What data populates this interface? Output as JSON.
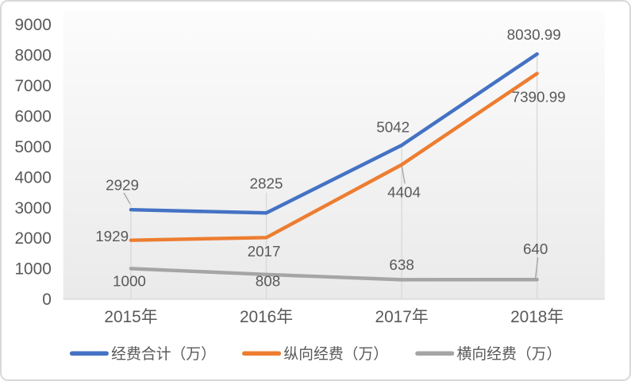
{
  "chart_data": {
    "type": "line",
    "title": "",
    "categories": [
      "2015年",
      "2016年",
      "2017年",
      "2018年"
    ],
    "series": [
      {
        "name": "经费合计（万）",
        "color": "#4472C4",
        "values": [
          2929,
          2825,
          5042,
          8030.99
        ],
        "labels": [
          "2929",
          "2825",
          "5042",
          "8030.99"
        ]
      },
      {
        "name": "纵向经费（万）",
        "color": "#ED7D31",
        "values": [
          1929,
          2017,
          4404,
          7390.99
        ],
        "labels": [
          "1929",
          "2017",
          "4404",
          "7390.99"
        ]
      },
      {
        "name": "横向经费（万）",
        "color": "#A5A5A5",
        "values": [
          1000,
          808,
          638,
          640
        ],
        "labels": [
          "1000",
          "808",
          "638",
          "640"
        ]
      }
    ],
    "y_axis": {
      "min": 0,
      "max": 9000,
      "step": 1000,
      "tick_labels": [
        "0",
        "1000",
        "2000",
        "3000",
        "4000",
        "5000",
        "6000",
        "7000",
        "8000",
        "9000"
      ]
    },
    "xlabel": "",
    "ylabel": "",
    "gridlines": false,
    "drop_lines": true,
    "legend": {
      "position": "bottom",
      "entries": [
        "经费合计（万）",
        "纵向经费（万）",
        "横向经费（万）"
      ]
    }
  },
  "colors": {
    "text": "#595959",
    "axis_line": "#D9D9D9",
    "drop_line": "#D9D9D9",
    "leader_line": "#A6A6A6",
    "plot_bg_top": "#FCFCFC",
    "plot_bg_bottom": "#EAEAEA",
    "card_border": "#D9D9D9",
    "card_bg": "#FFFFFF"
  }
}
